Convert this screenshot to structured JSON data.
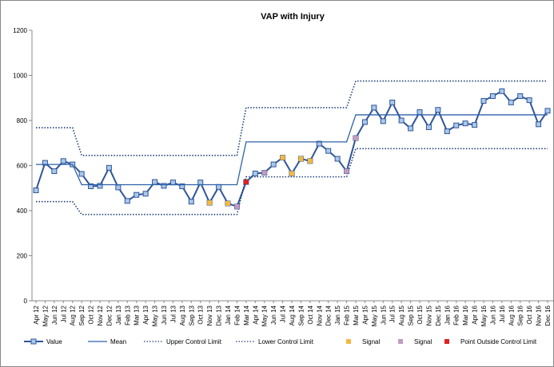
{
  "chart_data": {
    "type": "line",
    "title": "VAP with Injury",
    "categories": [
      "Apr 12",
      "May 12",
      "Jun 12",
      "Jul 12",
      "Aug 12",
      "Sep 12",
      "Oct 12",
      "Nov 12",
      "Dec 12",
      "Jan 13",
      "Feb 13",
      "Mar 13",
      "Apr 13",
      "May 13",
      "Jun 13",
      "Jul 13",
      "Aug 13",
      "Sep 13",
      "Oct 13",
      "Nov 13",
      "Dec 13",
      "Jan 14",
      "Feb 14",
      "Mar 14",
      "Apr 14",
      "May 14",
      "Jun 14",
      "Jul 14",
      "Aug 14",
      "Sep 14",
      "Oct 14",
      "Nov 14",
      "Dec 14",
      "Jan 15",
      "Feb 15",
      "Mar 15",
      "Apr 15",
      "May 15",
      "Jun 15",
      "Jul 15",
      "Aug 15",
      "Sep 15",
      "Oct 15",
      "Nov 15",
      "Dec 15",
      "Jan 16",
      "Feb 16",
      "Mar 16",
      "Apr 16",
      "May 16",
      "Jun 16",
      "Jul 16",
      "Aug 16",
      "Sep 16",
      "Oct 16",
      "Nov 16",
      "Dec 16"
    ],
    "ylim": [
      0,
      1200
    ],
    "yticks": [
      0,
      200,
      400,
      600,
      800,
      1000,
      1200
    ],
    "series": [
      {
        "name": "Value",
        "color": "#2f5597",
        "style": "line-marker",
        "values": [
          490,
          612,
          575,
          620,
          605,
          563,
          508,
          510,
          590,
          503,
          443,
          470,
          475,
          527,
          510,
          525,
          508,
          440,
          525,
          435,
          505,
          432,
          418,
          527,
          565,
          568,
          605,
          635,
          565,
          630,
          620,
          697,
          665,
          630,
          575,
          722,
          793,
          857,
          797,
          880,
          800,
          765,
          837,
          770,
          847,
          752,
          778,
          787,
          780,
          887,
          908,
          930,
          880,
          908,
          890,
          783,
          843
        ]
      },
      {
        "name": "Mean",
        "color": "#2e62a8",
        "style": "line",
        "values": [
          605,
          605,
          605,
          605,
          605,
          515,
          515,
          515,
          515,
          515,
          515,
          515,
          515,
          515,
          515,
          515,
          515,
          515,
          515,
          515,
          515,
          515,
          515,
          705,
          705,
          705,
          705,
          705,
          705,
          705,
          705,
          705,
          705,
          705,
          705,
          825,
          825,
          825,
          825,
          825,
          825,
          825,
          825,
          825,
          825,
          825,
          825,
          825,
          825,
          825,
          825,
          825,
          825,
          825,
          825,
          825,
          825
        ]
      },
      {
        "name": "Upper Control Limit",
        "color": "#1f3f7a",
        "style": "dotted",
        "values": [
          768,
          768,
          768,
          768,
          768,
          645,
          645,
          645,
          645,
          645,
          645,
          645,
          645,
          645,
          645,
          645,
          645,
          645,
          645,
          645,
          645,
          645,
          645,
          857,
          857,
          857,
          857,
          857,
          857,
          857,
          857,
          857,
          857,
          857,
          857,
          975,
          975,
          975,
          975,
          975,
          975,
          975,
          975,
          975,
          975,
          975,
          975,
          975,
          975,
          975,
          975,
          975,
          975,
          975,
          975,
          975,
          975
        ]
      },
      {
        "name": "Lower Control Limit",
        "color": "#1f3f7a",
        "style": "dotted",
        "values": [
          440,
          440,
          440,
          440,
          440,
          383,
          383,
          383,
          383,
          383,
          383,
          383,
          383,
          383,
          383,
          383,
          383,
          383,
          383,
          383,
          383,
          383,
          383,
          550,
          550,
          550,
          550,
          550,
          550,
          550,
          550,
          550,
          550,
          550,
          550,
          675,
          675,
          675,
          675,
          675,
          675,
          675,
          675,
          675,
          675,
          675,
          675,
          675,
          675,
          675,
          675,
          675,
          675,
          675,
          675,
          675,
          675
        ]
      },
      {
        "name": "Signal",
        "color": "#f4b942",
        "style": "marker",
        "values": [
          null,
          null,
          null,
          null,
          null,
          null,
          null,
          null,
          null,
          null,
          null,
          null,
          null,
          null,
          null,
          null,
          null,
          null,
          null,
          435,
          null,
          432,
          null,
          null,
          null,
          null,
          null,
          635,
          565,
          630,
          620,
          null,
          null,
          null,
          null,
          null,
          null,
          null,
          null,
          null,
          null,
          null,
          null,
          null,
          null,
          null,
          null,
          null,
          null,
          null,
          null,
          null,
          null,
          null,
          null,
          null,
          null
        ]
      },
      {
        "name": "Signal",
        "color": "#c39bc0",
        "style": "marker",
        "values": [
          null,
          null,
          null,
          null,
          null,
          null,
          null,
          null,
          null,
          null,
          null,
          null,
          null,
          null,
          null,
          null,
          null,
          null,
          null,
          null,
          null,
          null,
          418,
          null,
          null,
          568,
          null,
          null,
          null,
          null,
          null,
          null,
          null,
          null,
          575,
          722,
          null,
          null,
          null,
          null,
          null,
          null,
          null,
          null,
          null,
          null,
          null,
          null,
          null,
          null,
          null,
          null,
          null,
          null,
          null,
          null,
          null
        ]
      },
      {
        "name": "Point Outside Control Limit",
        "color": "#e02020",
        "style": "marker",
        "values": [
          null,
          null,
          null,
          null,
          null,
          null,
          null,
          null,
          null,
          null,
          null,
          null,
          null,
          null,
          null,
          null,
          null,
          null,
          null,
          null,
          null,
          null,
          null,
          527,
          null,
          null,
          null,
          null,
          null,
          null,
          null,
          null,
          null,
          null,
          null,
          null,
          null,
          null,
          null,
          null,
          null,
          null,
          null,
          null,
          null,
          null,
          null,
          null,
          null,
          null,
          null,
          null,
          null,
          null,
          null,
          null,
          null
        ]
      }
    ]
  }
}
